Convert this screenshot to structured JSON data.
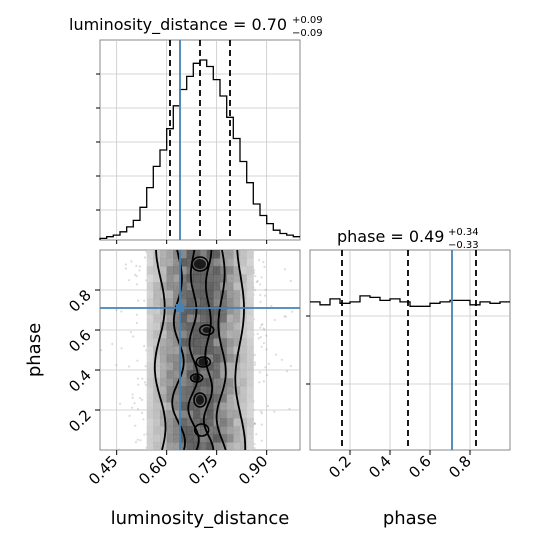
{
  "chart_data": [
    {
      "type": "histogram",
      "panel": "luminosity_distance-1d",
      "title_main": "luminosity_distance = 0.70",
      "title_sup": "+0.09",
      "title_sub": "−0.09",
      "xlim": [
        0.4,
        1.0
      ],
      "bin_edges": [
        0.4,
        0.42,
        0.44,
        0.46,
        0.48,
        0.5,
        0.52,
        0.54,
        0.56,
        0.58,
        0.6,
        0.62,
        0.64,
        0.66,
        0.68,
        0.7,
        0.72,
        0.74,
        0.76,
        0.78,
        0.8,
        0.82,
        0.84,
        0.86,
        0.88,
        0.9,
        0.92,
        0.94,
        0.96,
        0.98,
        1.0
      ],
      "counts": [
        1,
        2,
        3,
        5,
        8,
        12,
        20,
        32,
        45,
        55,
        68,
        82,
        92,
        100,
        108,
        110,
        106,
        98,
        88,
        75,
        62,
        48,
        35,
        22,
        15,
        10,
        6,
        4,
        3,
        2
      ],
      "quantile_lines": [
        0.61,
        0.7,
        0.79
      ],
      "truth": 0.64,
      "grid": true
    },
    {
      "type": "histogram",
      "panel": "phase-1d",
      "title_main": "phase = 0.49",
      "title_sup": "+0.34",
      "title_sub": "−0.33",
      "xlim": [
        0.0,
        1.0
      ],
      "xticks": [
        "0.2",
        "0.4",
        "0.6",
        "0.8"
      ],
      "xtick_values": [
        0.2,
        0.4,
        0.6,
        0.8
      ],
      "xlabel": "phase",
      "bin_edges": [
        0.0,
        0.05,
        0.1,
        0.15,
        0.2,
        0.25,
        0.3,
        0.35,
        0.4,
        0.45,
        0.5,
        0.55,
        0.6,
        0.65,
        0.7,
        0.75,
        0.8,
        0.85,
        0.9,
        0.95,
        1.0
      ],
      "counts": [
        100,
        98,
        102,
        99,
        100,
        104,
        103,
        101,
        102,
        100,
        97,
        97,
        99,
        100,
        101,
        101,
        98,
        100,
        99,
        100
      ],
      "quantile_lines": [
        0.16,
        0.49,
        0.83
      ],
      "truth": 0.71,
      "grid": true
    },
    {
      "type": "scatter-density-contour",
      "panel": "luminosity_distance-vs-phase",
      "xlabel": "luminosity_distance",
      "ylabel": "phase",
      "xlim": [
        0.4,
        1.0
      ],
      "ylim": [
        0.0,
        1.0
      ],
      "xticks": [
        "0.45",
        "0.60",
        "0.75",
        "0.90"
      ],
      "xtick_values": [
        0.45,
        0.6,
        0.75,
        0.9
      ],
      "yticks": [
        "0.2",
        "0.4",
        "0.6",
        "0.8"
      ],
      "ytick_values": [
        0.2,
        0.4,
        0.6,
        0.8
      ],
      "truth": {
        "x": 0.64,
        "y": 0.71
      },
      "grid": true
    }
  ]
}
